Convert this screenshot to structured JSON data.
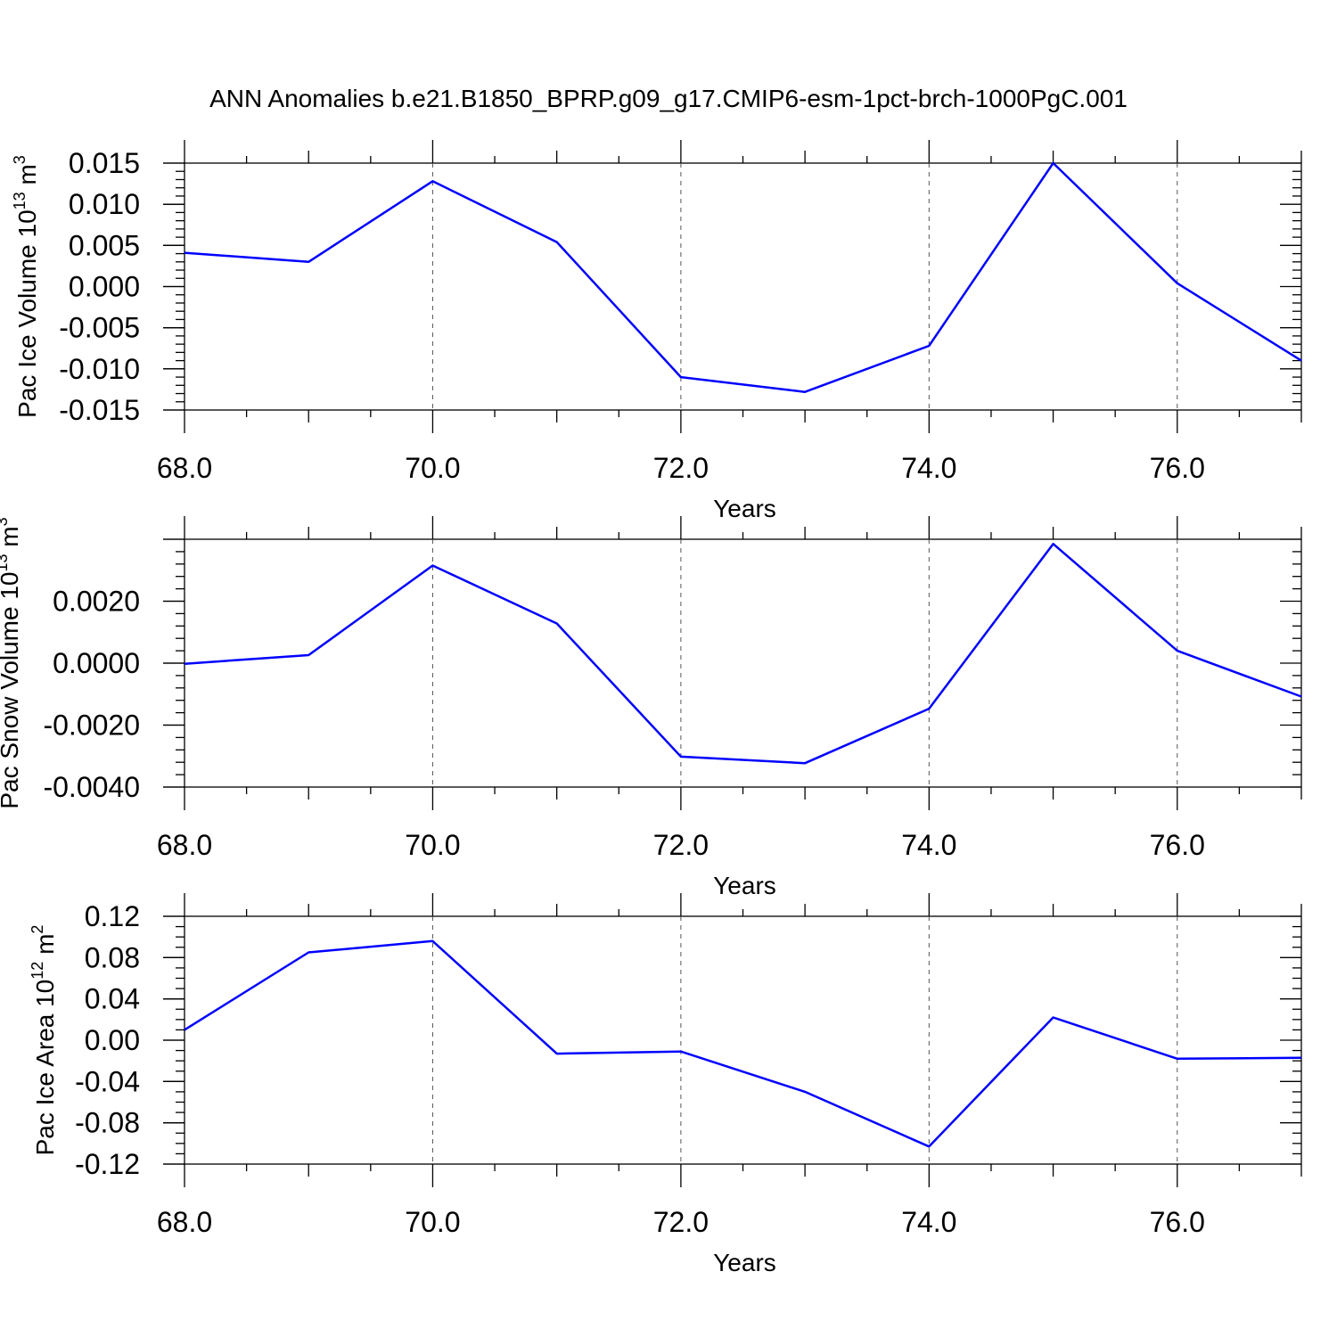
{
  "title": "ANN Anomalies b.e21.B1850_BPRP.g09_g17.CMIP6-esm-1pct-brch-1000PgC.001",
  "colors": {
    "series": "#0000ff",
    "axes": "#000000",
    "grid": "#555555"
  },
  "chart_data": [
    {
      "type": "line",
      "xlabel": "Years",
      "ylabel": "Pac Ice Volume 10",
      "ylabel_sup": "13",
      "ylabel_unit": "m",
      "ylabel_unit_sup": "3",
      "xlim": [
        68,
        77
      ],
      "ylim": [
        -0.015,
        0.015
      ],
      "xticks": [
        "68.0",
        "70.0",
        "72.0",
        "74.0",
        "76.0"
      ],
      "yticks": [
        "0.015",
        "0.010",
        "0.005",
        "0.000",
        "-0.005",
        "-0.010",
        "-0.015"
      ],
      "grid": "vertical dashed at major x ticks",
      "series": [
        {
          "x": [
            68,
            69,
            70,
            71,
            72,
            73,
            74,
            75,
            76,
            77
          ],
          "values": [
            0.0041,
            0.003,
            0.0128,
            0.0054,
            -0.011,
            -0.0128,
            -0.0072,
            0.015,
            0.0004,
            -0.009
          ]
        }
      ]
    },
    {
      "type": "line",
      "xlabel": "Years",
      "ylabel": "Pac Snow Volume 10",
      "ylabel_sup": "13",
      "ylabel_unit": "m",
      "ylabel_unit_sup": "3",
      "xlim": [
        68,
        77
      ],
      "ylim": [
        -0.004,
        0.004
      ],
      "xticks": [
        "68.0",
        "70.0",
        "72.0",
        "74.0",
        "76.0"
      ],
      "yticks": [
        "0.0020",
        "0.0000",
        "-0.0020",
        "-0.0040"
      ],
      "grid": "vertical dashed at major x ticks",
      "series": [
        {
          "x": [
            68,
            69,
            70,
            71,
            72,
            73,
            74,
            75,
            76,
            77
          ],
          "values": [
            -2e-05,
            0.00026,
            0.00315,
            0.00128,
            -0.00302,
            -0.00323,
            -0.00147,
            0.00385,
            0.0004,
            -0.00108
          ]
        }
      ]
    },
    {
      "type": "line",
      "xlabel": "Years",
      "ylabel": "Pac Ice Area 10",
      "ylabel_sup": "12",
      "ylabel_unit": "m",
      "ylabel_unit_sup": "2",
      "xlim": [
        68,
        77
      ],
      "ylim": [
        -0.12,
        0.12
      ],
      "xticks": [
        "68.0",
        "70.0",
        "72.0",
        "74.0",
        "76.0"
      ],
      "yticks": [
        "0.12",
        "0.08",
        "0.04",
        "0.00",
        "-0.04",
        "-0.08",
        "-0.12"
      ],
      "grid": "vertical dashed at major x ticks",
      "series": [
        {
          "x": [
            68,
            69,
            70,
            71,
            72,
            73,
            74,
            75,
            76,
            77
          ],
          "values": [
            0.01,
            0.085,
            0.096,
            -0.013,
            -0.011,
            -0.05,
            -0.103,
            0.022,
            -0.018,
            -0.017
          ]
        }
      ]
    }
  ]
}
